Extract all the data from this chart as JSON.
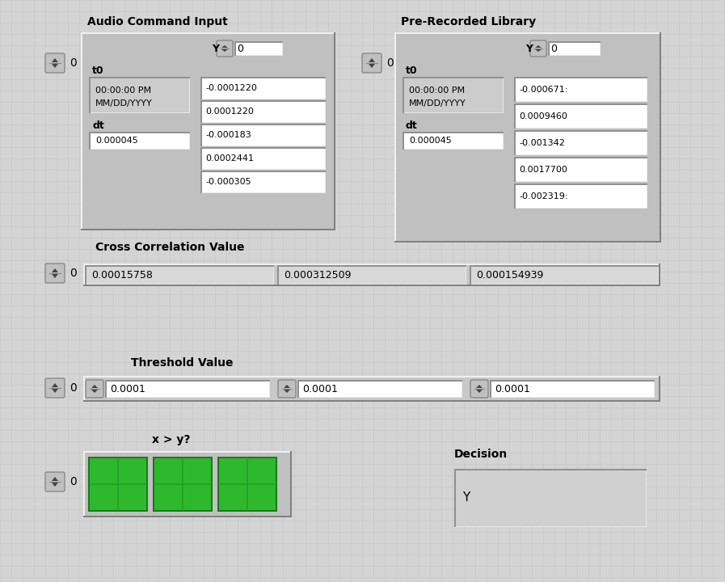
{
  "background_color": "#d4d4d4",
  "green_color": "#2db82d",
  "audio_title": "Audio Command Input",
  "pre_title": "Pre-Recorded Library",
  "audio_t0": "t0",
  "audio_dt": "dt",
  "audio_dt_val": "0.000045",
  "audio_Y_label": "Y",
  "audio_Y_val": "0",
  "audio_time_1": "00:00:00 PM",
  "audio_time_2": "MM/DD/YYYY",
  "audio_values": [
    "-0.0001220",
    "0.0001220",
    "-0.000183",
    "0.0002441",
    "-0.000305"
  ],
  "pre_t0": "t0",
  "pre_dt": "dt",
  "pre_dt_val": "0.000045",
  "pre_Y_label": "Y",
  "pre_Y_val": "0",
  "pre_time_1": "00:00:00 PM",
  "pre_time_2": "MM/DD/YYYY",
  "pre_values": [
    "-0.000671:",
    "0.0009460",
    "-0.001342",
    "0.0017700",
    "-0.002319:"
  ],
  "cross_corr_label": "Cross Correlation Value",
  "cross_vals": [
    "0.00015758",
    "0.000312509",
    "0.000154939"
  ],
  "threshold_label": "Threshold Value",
  "threshold_vals": [
    "0.0001",
    "0.0001",
    "0.0001"
  ],
  "xy_label": "x > y?",
  "decision_label": "Decision",
  "decision_val": "Y",
  "zero_label": "0"
}
